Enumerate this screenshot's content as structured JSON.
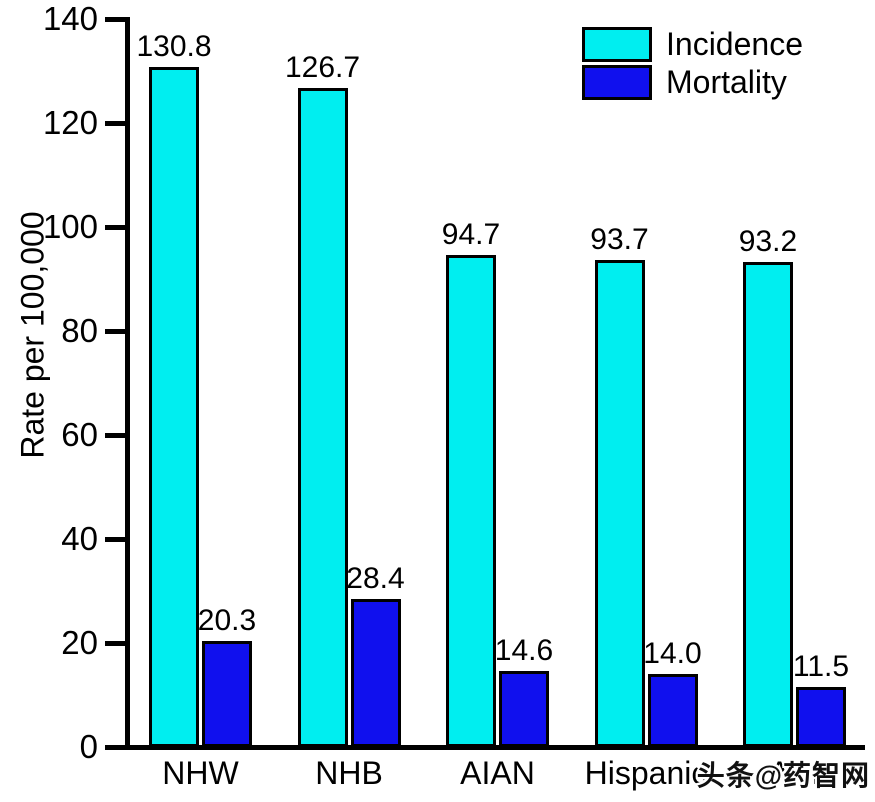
{
  "chart_data": {
    "type": "bar",
    "title": "",
    "xlabel": "",
    "ylabel": "Rate per 100,000",
    "ylim": [
      0,
      140
    ],
    "yticks": [
      0,
      20,
      40,
      60,
      80,
      100,
      120,
      140
    ],
    "grid": false,
    "legend_position": "top-right",
    "categories": [
      "NHW",
      "NHB",
      "AIAN",
      "Hispanic",
      "API"
    ],
    "series": [
      {
        "name": "Incidence",
        "color": "#00EEF0",
        "values": [
          130.8,
          126.7,
          94.7,
          93.7,
          93.2
        ]
      },
      {
        "name": "Mortality",
        "color": "#1010EE",
        "values": [
          20.3,
          28.4,
          14.6,
          14.0,
          11.5
        ]
      }
    ]
  },
  "watermark": {
    "text": "头条@药智网"
  },
  "colors": {
    "axis": "#000000",
    "background": "#FFFFFF"
  }
}
